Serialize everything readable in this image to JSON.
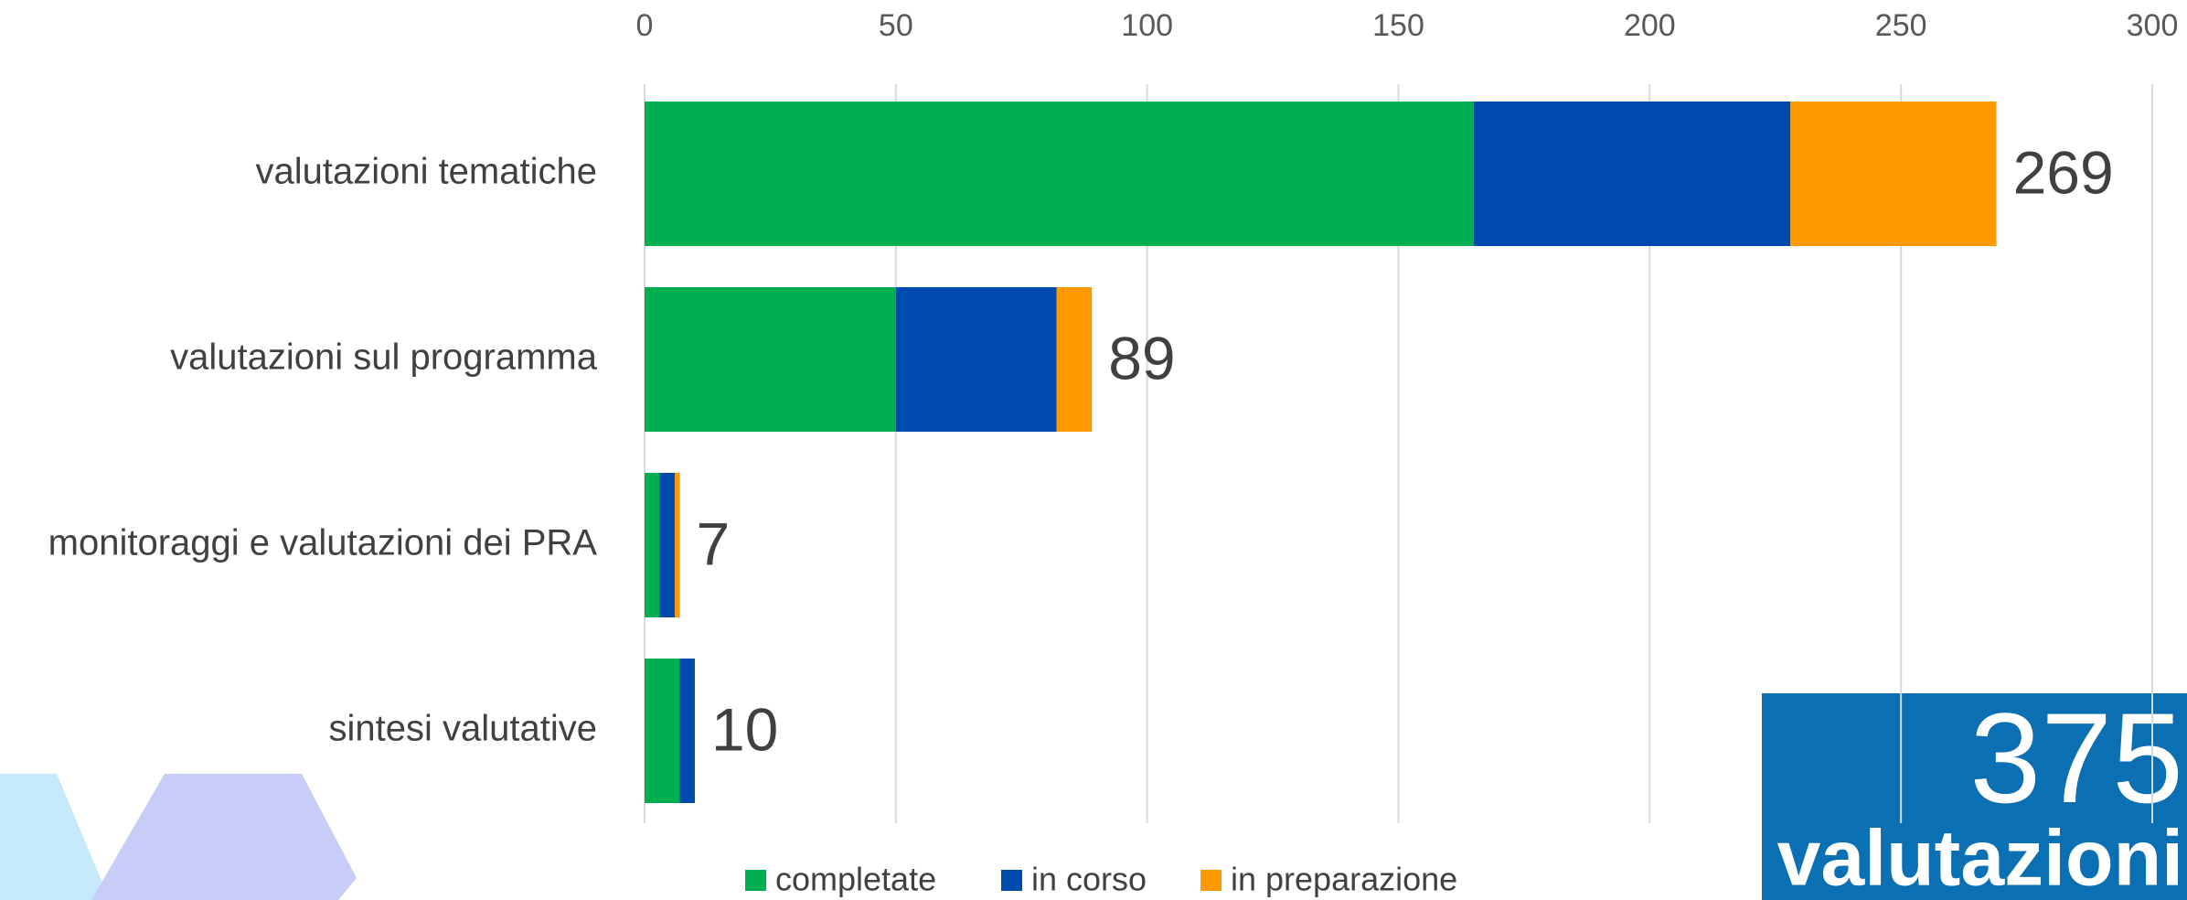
{
  "chart_data": {
    "type": "stacked-barh",
    "categories": [
      "valutazioni tematiche",
      "valutazioni sul programma",
      "monitoraggi e valutazioni dei PRA",
      "sintesi valutative"
    ],
    "series": [
      {
        "name": "completate",
        "color": "#00b050",
        "values": [
          165,
          50,
          3,
          7
        ]
      },
      {
        "name": "in corso",
        "color": "#004aad",
        "values": [
          63,
          32,
          3,
          3
        ]
      },
      {
        "name": "in preparazione",
        "color": "#ff9900",
        "values": [
          41,
          7,
          1,
          0
        ]
      }
    ],
    "totals": [
      269,
      89,
      7,
      10
    ],
    "xlim": [
      0,
      300
    ],
    "xticks": [
      0,
      50,
      100,
      150,
      200,
      250,
      300
    ],
    "grid": true,
    "badge": {
      "number": "375",
      "label": "valutazioni"
    }
  }
}
